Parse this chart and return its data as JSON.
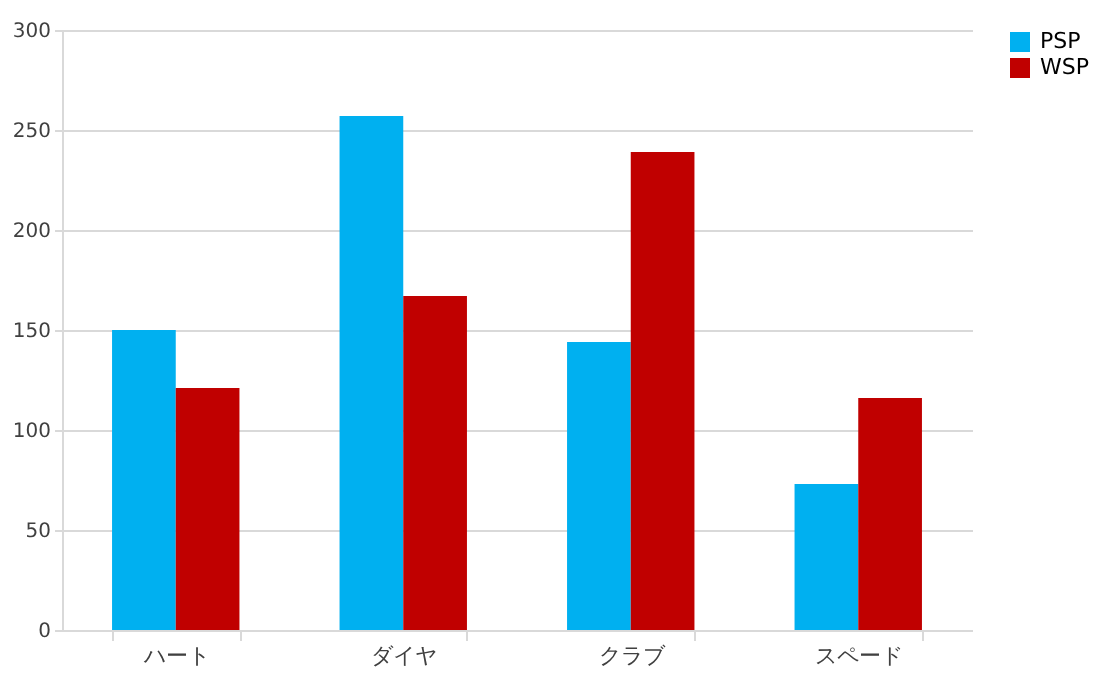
{
  "chart_data": {
    "type": "bar",
    "categories": [
      "ハート",
      "ダイヤ",
      "クラブ",
      "スペード"
    ],
    "series": [
      {
        "name": "PSP",
        "color": "#00b0f0",
        "values": [
          150,
          257,
          144,
          73
        ]
      },
      {
        "name": "WSP",
        "color": "#c00000",
        "values": [
          121,
          167,
          239,
          116
        ]
      }
    ],
    "ylim": [
      0,
      300
    ],
    "yticks": [
      0,
      50,
      100,
      150,
      200,
      250,
      300
    ],
    "grid": "y",
    "legend": "right"
  }
}
